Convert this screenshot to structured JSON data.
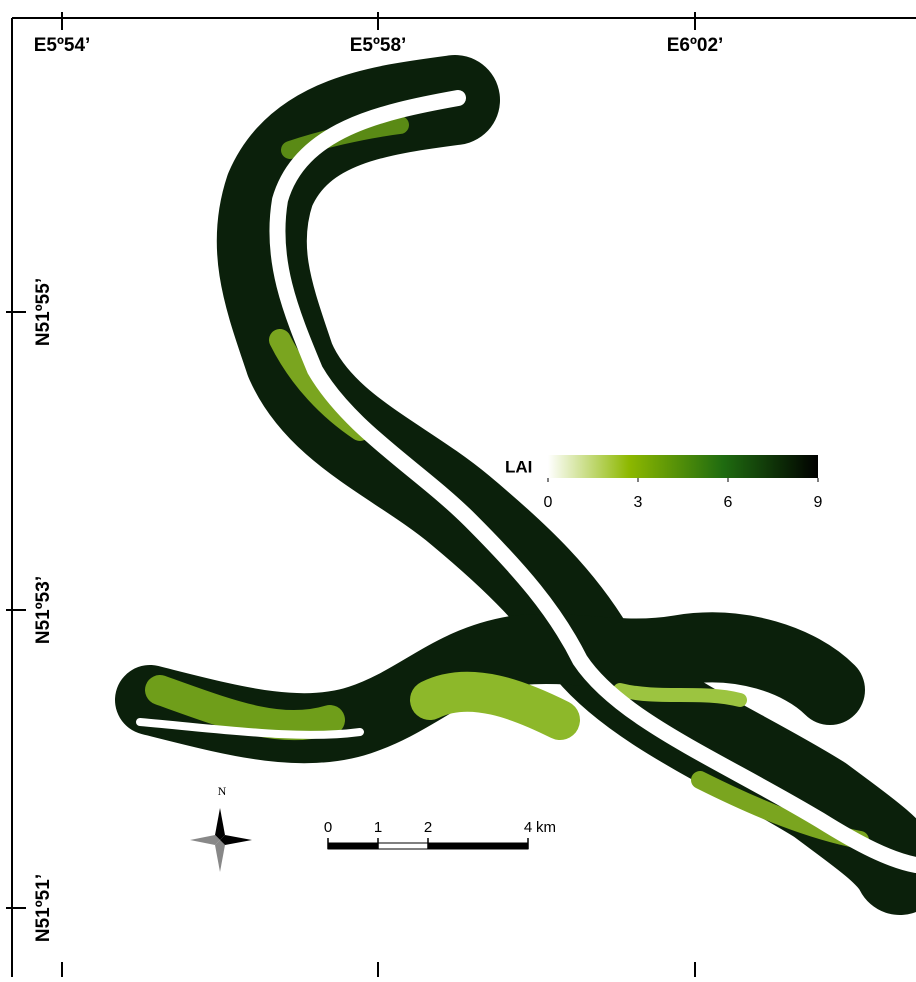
{
  "map": {
    "longitude_labels": [
      "E5º54’",
      "E5º58’",
      "E6º02’"
    ],
    "latitude_labels": [
      "N51º55’",
      "N51º53’",
      "N51º51’"
    ],
    "legend": {
      "label": "LAI",
      "lim": [
        0,
        9
      ],
      "ticks": [
        0,
        3,
        6,
        9
      ]
    },
    "north_label": "N",
    "scale_bar": {
      "ticks": [
        0,
        1,
        2,
        4
      ],
      "unit": "km"
    }
  }
}
